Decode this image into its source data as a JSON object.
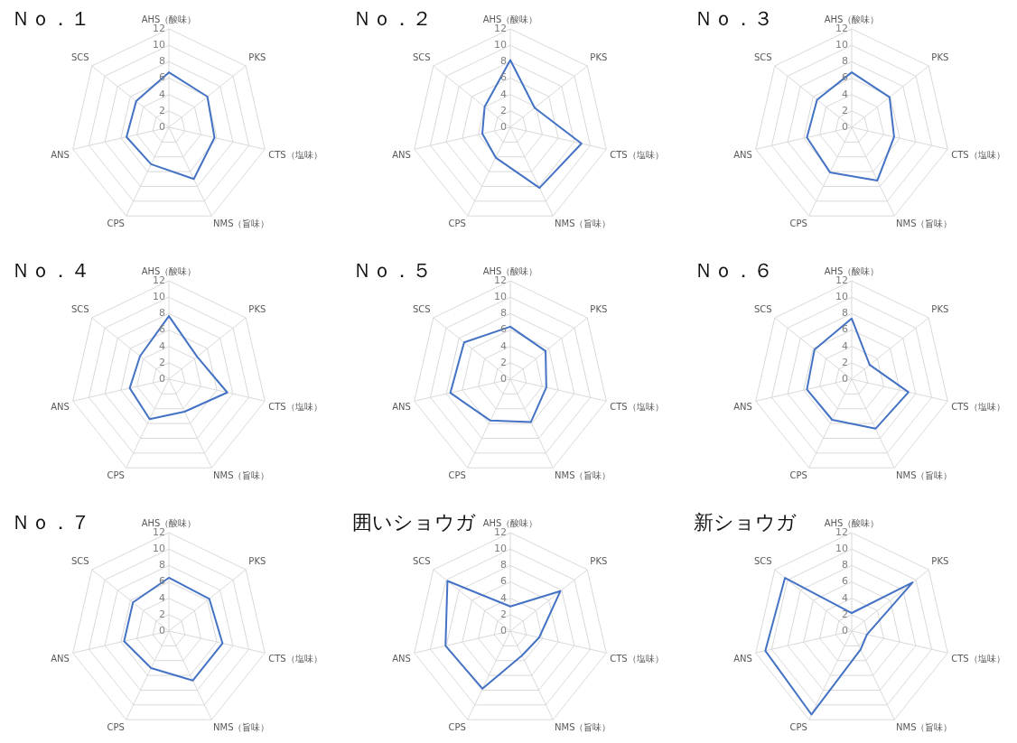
{
  "chart_data": [
    {
      "type": "radar",
      "title": "Ｎｏ．１",
      "categories": [
        "AHS（酸味）",
        "PKS",
        "CTS（塩味）",
        "NMS（旨味）",
        "CPS",
        "ANS",
        "SCS"
      ],
      "series": [
        {
          "color": "#4472c4",
          "values": [
            6.7,
            6.0,
            5.7,
            7.0,
            5.0,
            5.3,
            5.1
          ]
        }
      ],
      "ylim": [
        0,
        12
      ],
      "yticks": [
        0,
        2,
        4,
        6,
        8,
        10,
        12
      ],
      "grid": true,
      "legend": false,
      "marker": "none"
    },
    {
      "type": "radar",
      "title": "Ｎｏ．２",
      "categories": [
        "AHS（酸味）",
        "PKS",
        "CTS（塩味）",
        "NMS（旨味）",
        "CPS",
        "ANS",
        "SCS"
      ],
      "series": [
        {
          "color": "#4472c4",
          "values": [
            8.2,
            3.8,
            8.9,
            8.2,
            4.1,
            3.5,
            4.0
          ]
        }
      ],
      "ylim": [
        0,
        12
      ],
      "yticks": [
        0,
        2,
        4,
        6,
        8,
        10,
        12
      ],
      "grid": true,
      "legend": false,
      "marker": "none"
    },
    {
      "type": "radar",
      "title": "Ｎｏ．３",
      "categories": [
        "AHS（酸味）",
        "PKS",
        "CTS（塩味）",
        "NMS（旨味）",
        "CPS",
        "ANS",
        "SCS"
      ],
      "series": [
        {
          "color": "#4472c4",
          "values": [
            6.7,
            5.9,
            5.3,
            7.2,
            6.1,
            5.6,
            5.4
          ]
        }
      ],
      "ylim": [
        0,
        12
      ],
      "yticks": [
        0,
        2,
        4,
        6,
        8,
        10,
        12
      ],
      "grid": true,
      "legend": false,
      "marker": "none"
    },
    {
      "type": "radar",
      "title": "Ｎｏ．４",
      "categories": [
        "AHS（酸味）",
        "PKS",
        "CTS（塩味）",
        "NMS（旨味）",
        "CPS",
        "ANS",
        "SCS"
      ],
      "series": [
        {
          "color": "#4472c4",
          "values": [
            7.7,
            4.4,
            7.3,
            4.4,
            5.4,
            4.9,
            4.5
          ]
        }
      ],
      "ylim": [
        0,
        12
      ],
      "yticks": [
        0,
        2,
        4,
        6,
        8,
        10,
        12
      ],
      "grid": true,
      "legend": false,
      "marker": "none"
    },
    {
      "type": "radar",
      "title": "Ｎｏ．５",
      "categories": [
        "AHS（酸味）",
        "PKS",
        "CTS（塩味）",
        "NMS（旨味）",
        "CPS",
        "ANS",
        "SCS"
      ],
      "series": [
        {
          "color": "#4472c4",
          "values": [
            6.4,
            5.5,
            4.5,
            5.8,
            5.6,
            7.5,
            7.2
          ]
        }
      ],
      "ylim": [
        0,
        12
      ],
      "yticks": [
        0,
        2,
        4,
        6,
        8,
        10,
        12
      ],
      "grid": true,
      "legend": false,
      "marker": "none"
    },
    {
      "type": "radar",
      "title": "Ｎｏ．６",
      "categories": [
        "AHS（酸味）",
        "PKS",
        "CTS（塩味）",
        "NMS（旨味）",
        "CPS",
        "ANS",
        "SCS"
      ],
      "series": [
        {
          "color": "#4472c4",
          "values": [
            7.4,
            2.8,
            7.1,
            6.7,
            5.5,
            5.6,
            5.8
          ]
        }
      ],
      "ylim": [
        0,
        12
      ],
      "yticks": [
        0,
        2,
        4,
        6,
        8,
        10,
        12
      ],
      "grid": true,
      "legend": false,
      "marker": "none"
    },
    {
      "type": "radar",
      "title": "Ｎｏ．７",
      "categories": [
        "AHS（酸味）",
        "PKS",
        "CTS（塩味）",
        "NMS（旨味）",
        "CPS",
        "ANS",
        "SCS"
      ],
      "series": [
        {
          "color": "#4472c4",
          "values": [
            6.5,
            6.3,
            6.7,
            6.7,
            5.0,
            5.6,
            5.6
          ]
        }
      ],
      "ylim": [
        0,
        12
      ],
      "yticks": [
        0,
        2,
        4,
        6,
        8,
        10,
        12
      ],
      "grid": true,
      "legend": false,
      "marker": "none"
    },
    {
      "type": "radar",
      "title": "囲いショウガ",
      "categories": [
        "AHS（酸味）",
        "PKS",
        "CTS（塩味）",
        "NMS（旨味）",
        "CPS",
        "ANS",
        "SCS"
      ],
      "series": [
        {
          "color": "#4472c4",
          "values": [
            3.0,
            7.8,
            3.6,
            3.3,
            7.8,
            8.1,
            9.8
          ]
        }
      ],
      "ylim": [
        0,
        12
      ],
      "yticks": [
        0,
        2,
        4,
        6,
        8,
        10,
        12
      ],
      "grid": true,
      "legend": false,
      "marker": "none"
    },
    {
      "type": "radar",
      "title": "新ショウガ",
      "categories": [
        "AHS（酸味）",
        "PKS",
        "CTS（塩味）",
        "NMS（旨味）",
        "CPS",
        "ANS",
        "SCS"
      ],
      "series": [
        {
          "color": "#4472c4",
          "values": [
            2.2,
            9.5,
            1.9,
            2.5,
            11.3,
            10.8,
            10.4
          ]
        }
      ],
      "ylim": [
        0,
        12
      ],
      "yticks": [
        0,
        2,
        4,
        6,
        8,
        10,
        12
      ],
      "grid": true,
      "legend": false,
      "marker": "none"
    }
  ]
}
